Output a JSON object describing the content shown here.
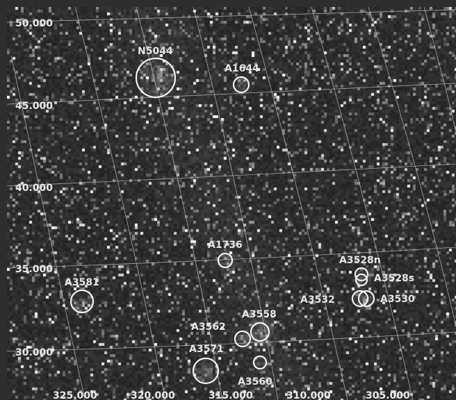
{
  "colors": {
    "background": "#2e2e2e",
    "grid": "#cfcfcf",
    "labels": "#e6e6e6",
    "circles": "#f2f2f2"
  },
  "axes": {
    "dec_labels": [
      "50.000",
      "45.000",
      "40.000",
      "35.000",
      "30.000"
    ],
    "ra_labels": [
      "325.000",
      "320.000",
      "315.000",
      "310.000",
      "305.000"
    ]
  },
  "clusters": [
    {
      "id": "n5044",
      "name": "N5044"
    },
    {
      "id": "a1644",
      "name": "A1644"
    },
    {
      "id": "a1736",
      "name": "A1736"
    },
    {
      "id": "a3528n",
      "name": "A3528n"
    },
    {
      "id": "a3528s",
      "name": "A3528s"
    },
    {
      "id": "a3530",
      "name": "A3530"
    },
    {
      "id": "a3532",
      "name": "A3532"
    },
    {
      "id": "a3581",
      "name": "A3581"
    },
    {
      "id": "a3558",
      "name": "A3558"
    },
    {
      "id": "a3562",
      "name": "A3562"
    },
    {
      "id": "a3571",
      "name": "A3571"
    },
    {
      "id": "a3560",
      "name": "A3560"
    }
  ]
}
